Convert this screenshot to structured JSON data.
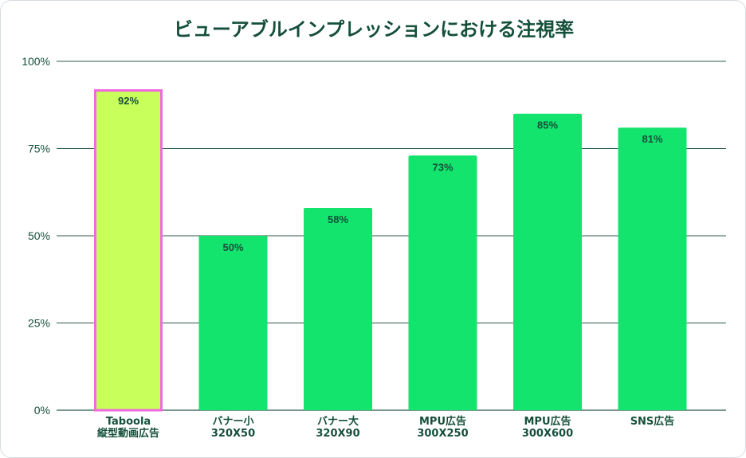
{
  "colors": {
    "bar": "#13e46d",
    "highlight_bar": "#c8ff5a",
    "highlight_border": "#f06adf",
    "text": "#15503a",
    "grid": "#2d5a4a"
  },
  "chart_data": {
    "type": "bar",
    "title": "ビューアブルインプレッションにおける注視率",
    "xlabel": "",
    "ylabel": "",
    "ylim": [
      0,
      100
    ],
    "y_ticks": [
      0,
      25,
      50,
      75,
      100
    ],
    "y_tick_labels": [
      "0%",
      "25%",
      "50%",
      "75%",
      "100%"
    ],
    "grid": true,
    "legend": "none",
    "categories": [
      [
        "Taboola",
        "縦型動画広告"
      ],
      [
        "バナー小",
        "320X50"
      ],
      [
        "バナー大",
        "320X90"
      ],
      [
        "MPU広告",
        "300X250"
      ],
      [
        "MPU広告",
        "300X600"
      ],
      [
        "SNS広告"
      ]
    ],
    "values": [
      92,
      50,
      58,
      73,
      85,
      81
    ],
    "value_labels": [
      "92%",
      "50%",
      "58%",
      "73%",
      "85%",
      "81%"
    ],
    "highlight_index": 0
  }
}
